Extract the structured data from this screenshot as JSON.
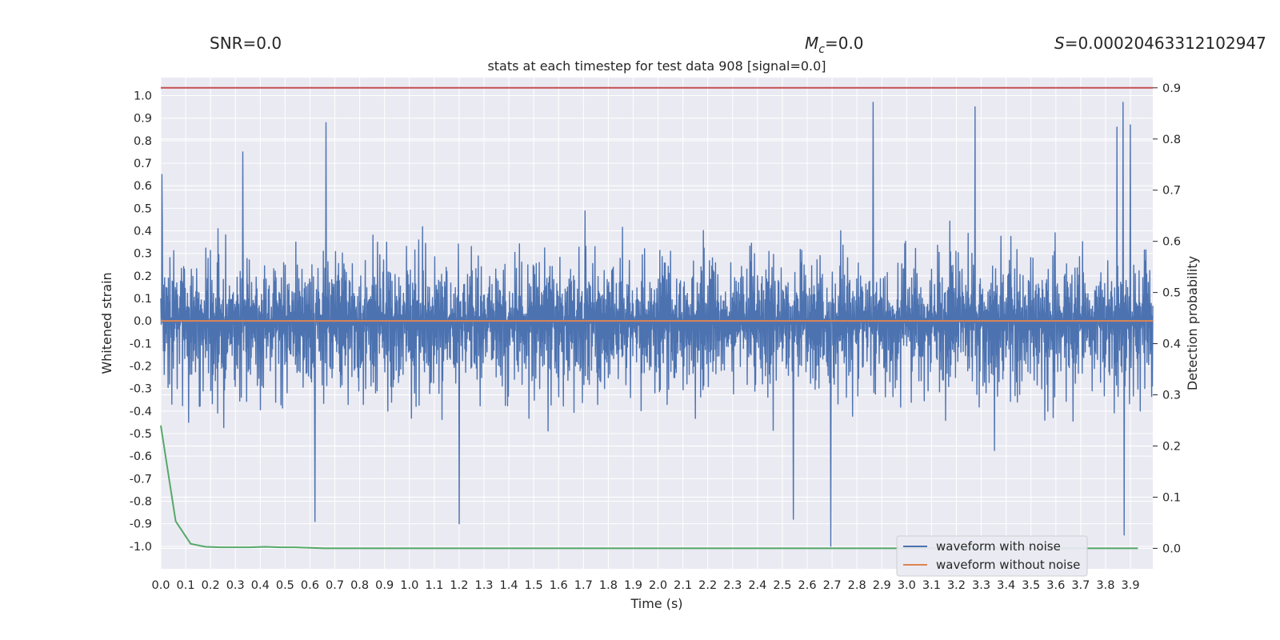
{
  "header": {
    "snr_text": "SNR=0.0",
    "mc_symbol": "M",
    "mc_sub": "c",
    "mc_value": "=0.0",
    "s_symbol": "S",
    "s_value": "=0.00020463312102947"
  },
  "chart_data": {
    "type": "line",
    "title": "stats at each timestep for test data 908 [signal=0.0]",
    "xlabel": "Time (s)",
    "ylabel_left": "Whitened strain",
    "ylabel_right": "Detection probability",
    "xlim": [
      0.0,
      3.99
    ],
    "ylim_left": [
      -1.1,
      1.08
    ],
    "ylim_right": [
      -0.04,
      0.92
    ],
    "x_ticks": [
      "0.0",
      "0.1",
      "0.2",
      "0.3",
      "0.4",
      "0.5",
      "0.6",
      "0.7",
      "0.8",
      "0.9",
      "1.0",
      "1.1",
      "1.2",
      "1.3",
      "1.4",
      "1.5",
      "1.6",
      "1.7",
      "1.8",
      "1.9",
      "2.0",
      "2.1",
      "2.2",
      "2.3",
      "2.4",
      "2.5",
      "2.6",
      "2.7",
      "2.8",
      "2.9",
      "3.0",
      "3.1",
      "3.2",
      "3.3",
      "3.4",
      "3.5",
      "3.6",
      "3.7",
      "3.8",
      "3.9"
    ],
    "y_ticks_left": [
      "1.0",
      "0.9",
      "0.8",
      "0.7",
      "0.6",
      "0.5",
      "0.4",
      "0.3",
      "0.2",
      "0.1",
      "0.0",
      "-0.1",
      "-0.2",
      "-0.3",
      "-0.4",
      "-0.5",
      "-0.6",
      "-0.7",
      "-0.8",
      "-0.9",
      "-1.0"
    ],
    "y_ticks_right": [
      "0.9",
      "0.8",
      "0.7",
      "0.6",
      "0.5",
      "0.4",
      "0.3",
      "0.2",
      "0.1",
      "0.0"
    ],
    "grid": true,
    "legend_position": "lower-right",
    "colors": {
      "noisy": "#4c72b0",
      "clean": "#dd8452",
      "probability": "#55a868",
      "threshold": "#c44e52",
      "background": "#eaeaf2",
      "grid": "#ffffff"
    },
    "series": [
      {
        "name": "waveform with noise",
        "axis": "left",
        "generated_noise": true,
        "amplitude_range": [
          -1.0,
          0.98
        ],
        "x_range": [
          0.0,
          3.99
        ],
        "peaks": [
          {
            "x": 0.005,
            "y": 0.65
          },
          {
            "x": 0.665,
            "y": 0.88
          },
          {
            "x": 0.33,
            "y": 0.75
          },
          {
            "x": 2.865,
            "y": 0.97
          },
          {
            "x": 3.275,
            "y": 0.95
          },
          {
            "x": 3.87,
            "y": 0.97
          },
          {
            "x": 3.9,
            "y": 0.87
          },
          {
            "x": 3.845,
            "y": 0.86
          },
          {
            "x": 2.695,
            "y": -1.0
          },
          {
            "x": 2.545,
            "y": -0.88
          },
          {
            "x": 1.2,
            "y": -0.9
          },
          {
            "x": 0.62,
            "y": -0.89
          },
          {
            "x": 3.875,
            "y": -0.95
          }
        ]
      },
      {
        "name": "waveform without noise",
        "axis": "left",
        "x": [
          0.0,
          3.99
        ],
        "y": [
          0.0,
          0.0
        ]
      },
      {
        "name": "detection probability",
        "axis": "right",
        "x": [
          0.0,
          0.06,
          0.12,
          0.18,
          0.24,
          0.3,
          0.36,
          0.42,
          0.48,
          0.54,
          0.6,
          0.66,
          0.72,
          0.78,
          0.84,
          0.9,
          0.96,
          1.02,
          1.08,
          1.14,
          1.2,
          1.26,
          1.32,
          1.38,
          1.44,
          1.5,
          1.56,
          1.62,
          1.68,
          1.74,
          1.8,
          1.86,
          1.92,
          1.98,
          2.04,
          2.1,
          2.16,
          2.22,
          2.28,
          2.34,
          2.4,
          2.46,
          2.52,
          2.58,
          2.64,
          2.7,
          2.76,
          2.82,
          2.88,
          2.94,
          3.0,
          3.06,
          3.12,
          3.18,
          3.24,
          3.3,
          3.36,
          3.42,
          3.48,
          3.54,
          3.6,
          3.66,
          3.72,
          3.78,
          3.84,
          3.9,
          3.93
        ],
        "y": [
          0.24,
          0.053,
          0.009,
          0.003,
          0.002,
          0.002,
          0.002,
          0.003,
          0.002,
          0.002,
          0.001,
          0.0,
          0.0,
          0.0,
          0.0,
          0.0,
          0.0,
          0.0,
          0.0,
          0.0,
          0.0,
          0.0,
          0.0,
          0.0,
          0.0,
          0.0,
          0.0,
          0.0,
          0.0,
          0.0,
          0.0,
          0.0,
          0.0,
          0.0,
          0.0,
          0.0,
          0.0,
          0.0,
          0.0,
          0.0,
          0.0,
          0.0,
          0.0,
          0.0,
          0.0,
          0.0,
          0.0,
          0.0,
          0.0,
          0.0,
          0.0,
          0.0,
          0.0,
          0.0,
          0.0,
          0.0,
          0.0,
          0.0,
          0.0,
          0.0,
          0.0,
          0.0,
          0.0,
          0.0,
          0.0,
          0.0,
          0.0
        ]
      },
      {
        "name": "detection threshold",
        "axis": "right",
        "x": [
          0.0,
          3.99
        ],
        "y": [
          0.9,
          0.9
        ]
      }
    ],
    "legend": [
      "waveform with noise",
      "waveform without noise"
    ]
  }
}
